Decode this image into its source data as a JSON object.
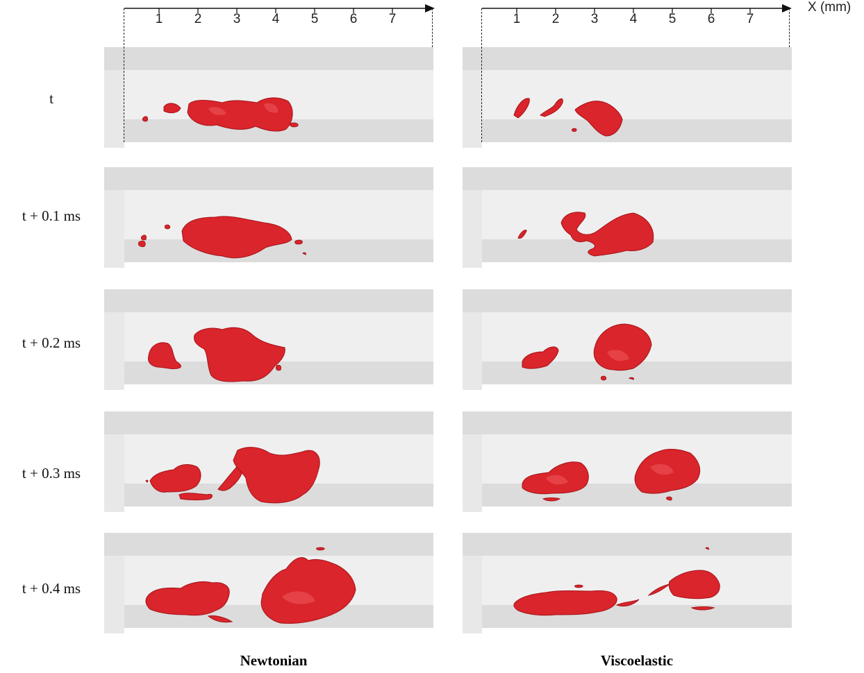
{
  "axis": {
    "unit_label": "X (mm)",
    "ticks": [
      "1",
      "2",
      "3",
      "4",
      "5",
      "6",
      "7"
    ]
  },
  "rows": [
    {
      "label": "t"
    },
    {
      "label": "t + 0.1 ms"
    },
    {
      "label": "t + 0.2 ms"
    },
    {
      "label": "t + 0.3 ms"
    },
    {
      "label": "t + 0.4 ms"
    }
  ],
  "columns": [
    {
      "title": "Newtonian"
    },
    {
      "title": "Viscoelastic"
    }
  ],
  "colors": {
    "fluid": "#d9252b",
    "fluid_dark": "#a5141b",
    "fluid_light": "#ef5a5e",
    "band_dark": "#dcdcdc",
    "band_light": "#efefef",
    "step": "#e6e6e6"
  }
}
